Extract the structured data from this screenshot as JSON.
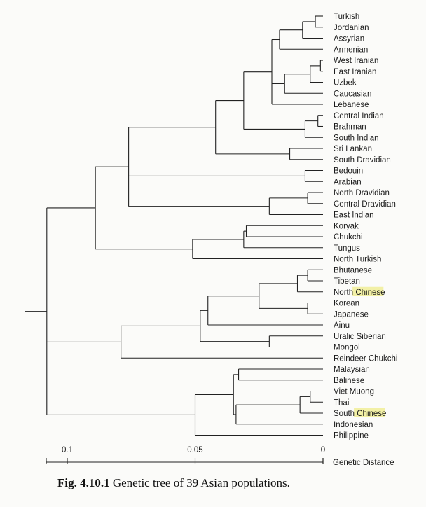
{
  "figure": {
    "caption_label": "Fig. 4.10.1",
    "caption_text": "Genetic tree of 39 Asian populations.",
    "axis_title": "Genetic Distance",
    "ticks": [
      {
        "value": 0.1,
        "label": "0.1"
      },
      {
        "value": 0.05,
        "label": "0.05"
      },
      {
        "value": 0,
        "label": "0"
      }
    ],
    "highlight_color": "#f2f0a6",
    "highlighted_word": "Chinese"
  },
  "tree": {
    "populations": [
      "Turkish",
      "Jordanian",
      "Assyrian",
      "Armenian",
      "West Iranian",
      "East Iranian",
      "Uzbek",
      "Caucasian",
      "Lebanese",
      "Central Indian",
      "Brahman",
      "South Indian",
      "Sri Lankan",
      "South Dravidian",
      "Bedouin",
      "Arabian",
      "North Dravidian",
      "Central Dravidian",
      "East Indian",
      "Koryak",
      "Chukchi",
      "Tungus",
      "North Turkish",
      "Bhutanese",
      "Tibetan",
      "North Chinese",
      "Korean",
      "Japanese",
      "Ainu",
      "Uralic Siberian",
      "Mongol",
      "Reindeer Chukchi",
      "Malaysian",
      "Balinese",
      "Viet Muong",
      "Thai",
      "South Chinese",
      "Indonesian",
      "Philippine"
    ],
    "root": {
      "h": 0.108,
      "c": [
        {
          "h": 0.089,
          "c": [
            {
              "h": 0.076,
              "c": [
                {
                  "h": 0.042,
                  "c": [
                    {
                      "h": 0.031,
                      "c": [
                        {
                          "h": 0.02,
                          "c": [
                            {
                              "h": 0.017,
                              "c": [
                                {
                                  "h": 0.008,
                                  "c": [
                                    {
                                      "h": 0.003,
                                      "c": [
                                        0,
                                        1
                                      ]
                                    },
                                    2
                                  ]
                                },
                                3
                              ]
                            },
                            {
                              "h": 0.015,
                              "c": [
                                {
                                  "h": 0.005,
                                  "c": [
                                    {
                                      "h": 0.001,
                                      "c": [
                                        4,
                                        5
                                      ]
                                    },
                                    6
                                  ]
                                },
                                7
                              ]
                            },
                            8
                          ]
                        },
                        {
                          "h": 0.007,
                          "c": [
                            {
                              "h": 0.002,
                              "c": [
                                9,
                                10
                              ]
                            },
                            11
                          ]
                        }
                      ]
                    },
                    {
                      "h": 0.013,
                      "c": [
                        12,
                        13
                      ]
                    }
                  ]
                },
                {
                  "h": 0.007,
                  "c": [
                    14,
                    15
                  ]
                },
                {
                  "h": 0.021,
                  "c": [
                    {
                      "h": 0.006,
                      "c": [
                        16,
                        17
                      ]
                    },
                    18
                  ]
                }
              ]
            },
            {
              "h": 0.051,
              "c": [
                {
                  "h": 0.031,
                  "c": [
                    {
                      "h": 0.03,
                      "c": [
                        19,
                        20
                      ]
                    },
                    21
                  ]
                },
                22
              ]
            }
          ]
        },
        {
          "h": 0.079,
          "c": [
            {
              "h": 0.048,
              "c": [
                {
                  "h": 0.045,
                  "c": [
                    {
                      "h": 0.025,
                      "c": [
                        {
                          "h": 0.01,
                          "c": [
                            {
                              "h": 0.006,
                              "c": [
                                23,
                                24
                              ]
                            },
                            25
                          ]
                        },
                        {
                          "h": 0.006,
                          "c": [
                            26,
                            27
                          ]
                        }
                      ]
                    },
                    28
                  ]
                },
                {
                  "h": 0.021,
                  "c": [
                    29,
                    30
                  ]
                }
              ]
            },
            31
          ]
        },
        {
          "h": 0.05,
          "c": [
            {
              "h": 0.035,
              "c": [
                {
                  "h": 0.033,
                  "c": [
                    32,
                    33
                  ]
                },
                {
                  "h": 0.034,
                  "c": [
                    {
                      "h": 0.009,
                      "c": [
                        {
                          "h": 0.005,
                          "c": [
                            34,
                            35
                          ]
                        },
                        36
                      ]
                    },
                    37
                  ]
                }
              ]
            },
            38
          ]
        }
      ]
    }
  }
}
